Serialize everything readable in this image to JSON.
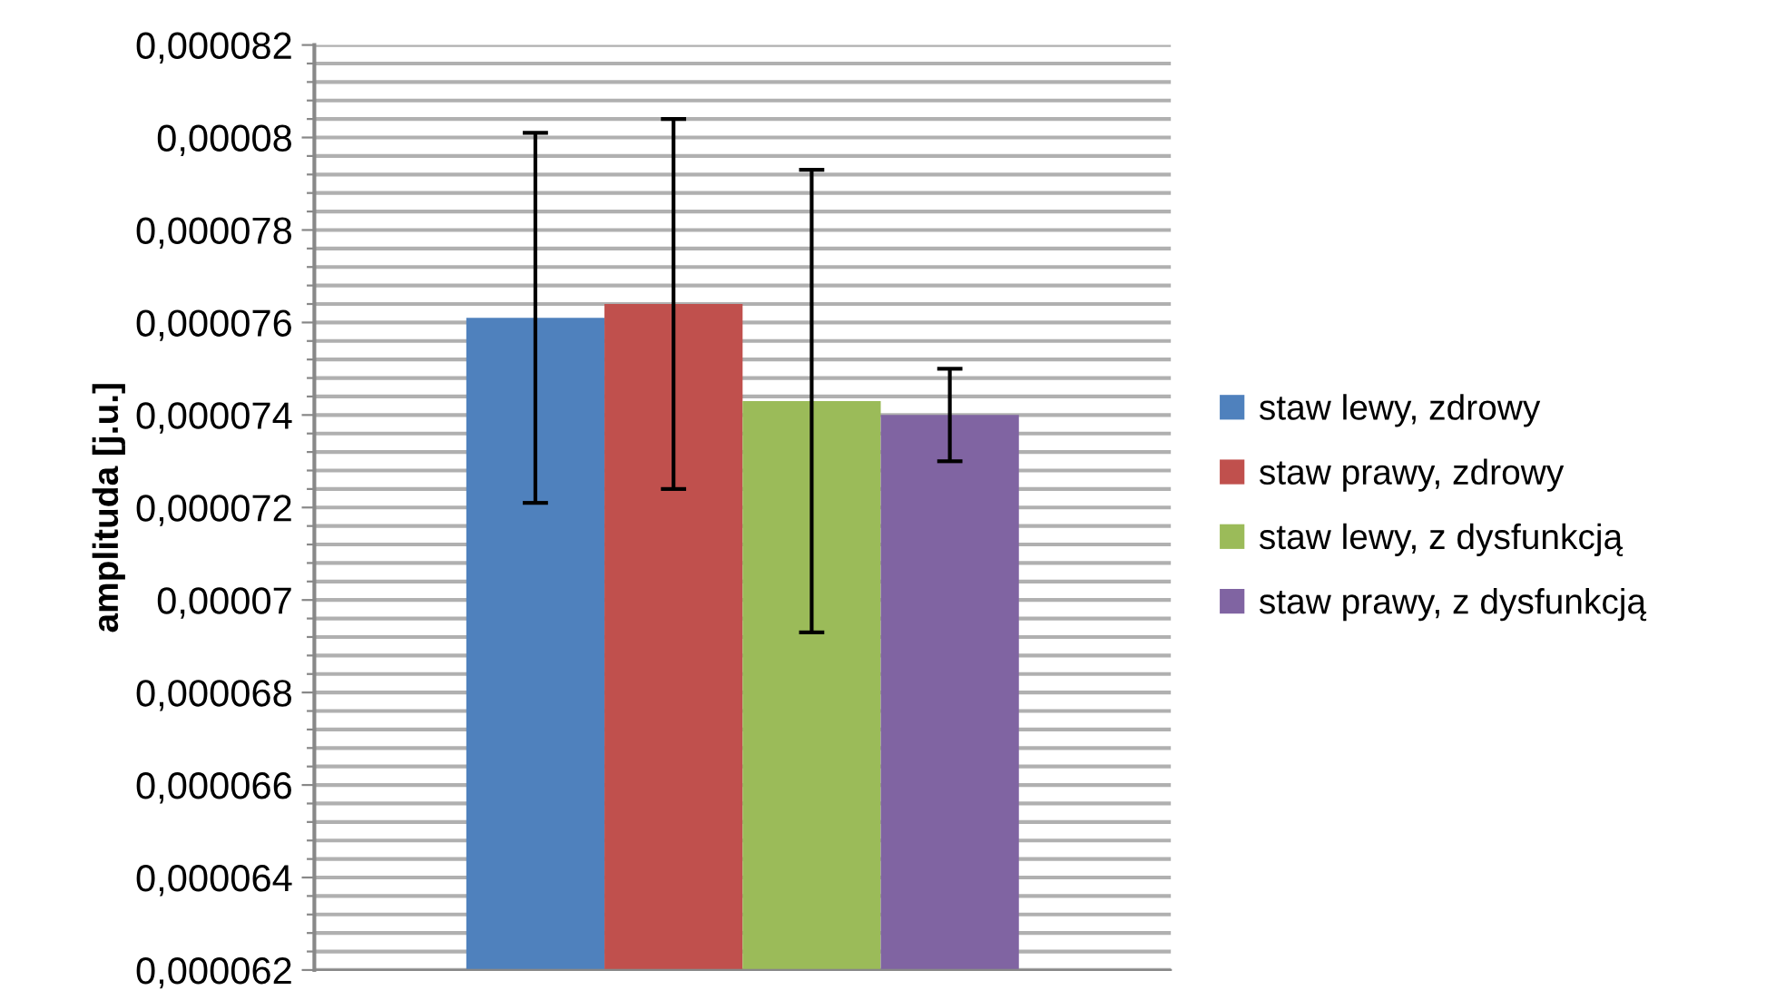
{
  "chart_data": {
    "type": "bar",
    "ylabel": "amplituda [j.u.]",
    "categories": [
      null
    ],
    "series": [
      {
        "name": "staw lewy, zdrowy",
        "color": "#4f81bd",
        "values": [
          7.61e-05
        ],
        "errors": [
          4e-06
        ]
      },
      {
        "name": "staw prawy, zdrowy",
        "color": "#c0504d",
        "values": [
          7.64e-05
        ],
        "errors": [
          4e-06
        ]
      },
      {
        "name": "staw lewy, z dysfunkcją",
        "color": "#9bbb59",
        "values": [
          7.43e-05
        ],
        "errors": [
          5e-06
        ]
      },
      {
        "name": "staw prawy, z dysfunkcją",
        "color": "#8064a2",
        "values": [
          7.4e-05
        ],
        "errors": [
          1e-06
        ]
      }
    ],
    "ylim": [
      6.2e-05,
      8.2e-05
    ],
    "yticks": [
      {
        "value": 6.2e-05,
        "label": "0,000062"
      },
      {
        "value": 6.24e-05,
        "label": null
      },
      {
        "value": 6.28e-05,
        "label": null
      },
      {
        "value": 6.32e-05,
        "label": null
      },
      {
        "value": 6.36e-05,
        "label": null
      },
      {
        "value": 6.4e-05,
        "label": "0,000064"
      },
      {
        "value": 6.44e-05,
        "label": null
      },
      {
        "value": 6.48e-05,
        "label": null
      },
      {
        "value": 6.52e-05,
        "label": null
      },
      {
        "value": 6.56e-05,
        "label": null
      },
      {
        "value": 6.6e-05,
        "label": "0,000066"
      },
      {
        "value": 6.64e-05,
        "label": null
      },
      {
        "value": 6.68e-05,
        "label": null
      },
      {
        "value": 6.72e-05,
        "label": null
      },
      {
        "value": 6.76e-05,
        "label": null
      },
      {
        "value": 6.8e-05,
        "label": "0,000068"
      },
      {
        "value": 6.84e-05,
        "label": null
      },
      {
        "value": 6.88e-05,
        "label": null
      },
      {
        "value": 6.92e-05,
        "label": null
      },
      {
        "value": 6.96e-05,
        "label": null
      },
      {
        "value": 7e-05,
        "label": "0,00007"
      },
      {
        "value": 7.04e-05,
        "label": null
      },
      {
        "value": 7.08e-05,
        "label": null
      },
      {
        "value": 7.12e-05,
        "label": null
      },
      {
        "value": 7.16e-05,
        "label": null
      },
      {
        "value": 7.2e-05,
        "label": "0,000072"
      },
      {
        "value": 7.24e-05,
        "label": null
      },
      {
        "value": 7.28e-05,
        "label": null
      },
      {
        "value": 7.32e-05,
        "label": null
      },
      {
        "value": 7.36e-05,
        "label": null
      },
      {
        "value": 7.4e-05,
        "label": "0,000074"
      },
      {
        "value": 7.44e-05,
        "label": null
      },
      {
        "value": 7.48e-05,
        "label": null
      },
      {
        "value": 7.52e-05,
        "label": null
      },
      {
        "value": 7.56e-05,
        "label": null
      },
      {
        "value": 7.6e-05,
        "label": "0,000076"
      },
      {
        "value": 7.64e-05,
        "label": null
      },
      {
        "value": 7.68e-05,
        "label": null
      },
      {
        "value": 7.72e-05,
        "label": null
      },
      {
        "value": 7.76e-05,
        "label": null
      },
      {
        "value": 7.8e-05,
        "label": "0,000078"
      },
      {
        "value": 7.84e-05,
        "label": null
      },
      {
        "value": 7.88e-05,
        "label": null
      },
      {
        "value": 7.92e-05,
        "label": null
      },
      {
        "value": 7.96e-05,
        "label": null
      },
      {
        "value": 8e-05,
        "label": "0,00008"
      },
      {
        "value": 8.04e-05,
        "label": null
      },
      {
        "value": 8.08e-05,
        "label": null
      },
      {
        "value": 8.12e-05,
        "label": null
      },
      {
        "value": 8.16e-05,
        "label": null
      },
      {
        "value": 8.2e-05,
        "label": "0,000082"
      }
    ],
    "grid": "y",
    "legend": "right"
  }
}
